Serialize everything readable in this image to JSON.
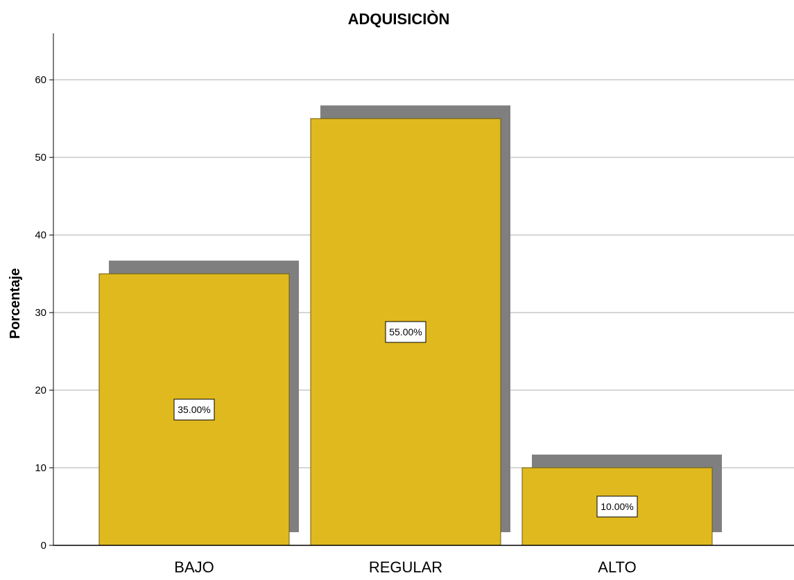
{
  "chart_data": {
    "type": "bar",
    "title": "ADQUISICIÒN",
    "xlabel": "",
    "ylabel": "Porcentaje",
    "categories": [
      "BAJO",
      "REGULAR",
      "ALTO"
    ],
    "values": [
      35,
      55,
      10
    ],
    "data_labels": [
      "35.00%",
      "55.00%",
      "10.00%"
    ],
    "ylim": [
      0,
      66
    ],
    "yticks": [
      0,
      10,
      20,
      30,
      40,
      50,
      60
    ],
    "grid": "horizontal",
    "legend": "none",
    "bar_shadow": true
  },
  "colors": {
    "bar_fill": "#e0b91e",
    "bar_stroke": "#6b5a10",
    "shadow": "#7f7f7f",
    "grid": "#c8c8c8",
    "axis": "#000000",
    "background": "#ffffff"
  }
}
